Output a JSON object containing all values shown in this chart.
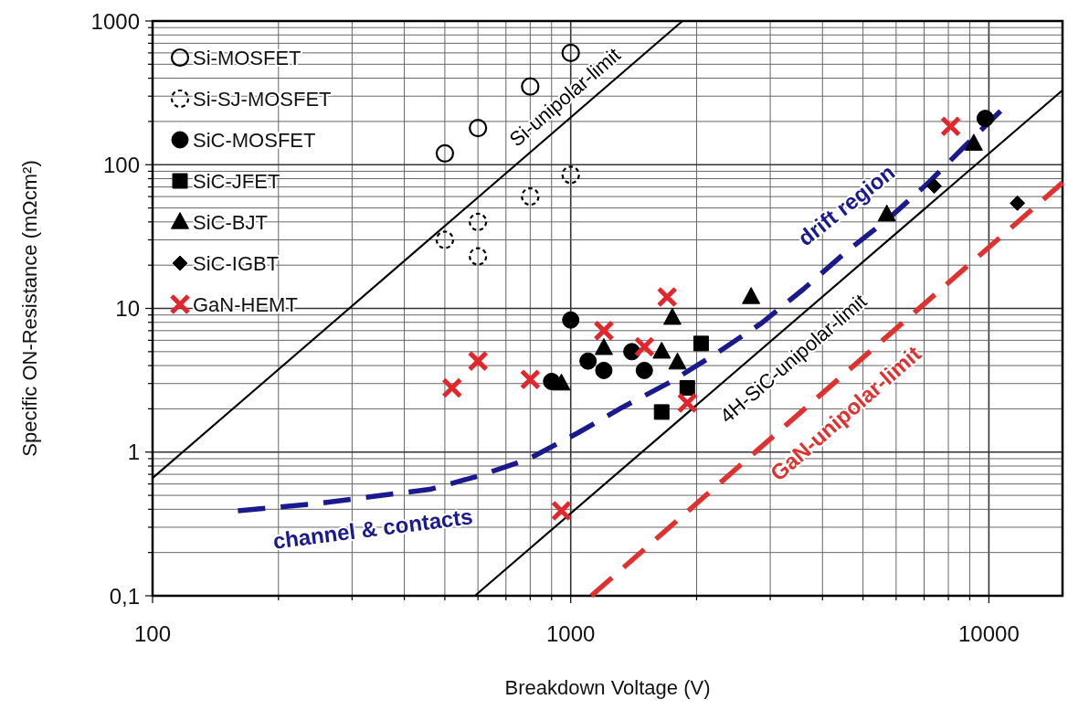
{
  "chart_data": {
    "type": "scatter",
    "xlabel": "Breakdown Voltage (V)",
    "ylabel": "Specific ON-Resistance (mΩcm²)",
    "log": "xy",
    "xlim": [
      100,
      15000
    ],
    "ylim": [
      0.1,
      1000
    ],
    "xticks": [
      100,
      {
        "value": 200,
        "label": null
      },
      {
        "value": 300,
        "label": null
      },
      {
        "value": 400,
        "label": null
      },
      {
        "value": 500,
        "label": null
      },
      {
        "value": 600,
        "label": null
      },
      {
        "value": 700,
        "label": null
      },
      {
        "value": 800,
        "label": null
      },
      {
        "value": 900,
        "label": null
      },
      1000,
      {
        "value": 2000,
        "label": null
      },
      {
        "value": 3000,
        "label": null
      },
      {
        "value": 4000,
        "label": null
      },
      {
        "value": 5000,
        "label": null
      },
      {
        "value": 6000,
        "label": null
      },
      {
        "value": 7000,
        "label": null
      },
      {
        "value": 8000,
        "label": null
      },
      {
        "value": 9000,
        "label": null
      },
      10000
    ],
    "yticks": [
      {
        "value": 0.1,
        "label": "0,1"
      },
      {
        "value": 0.2,
        "label": null
      },
      {
        "value": 0.3,
        "label": null
      },
      {
        "value": 0.4,
        "label": null
      },
      {
        "value": 0.5,
        "label": null
      },
      {
        "value": 0.6,
        "label": null
      },
      {
        "value": 0.7,
        "label": null
      },
      {
        "value": 0.8,
        "label": null
      },
      {
        "value": 0.9,
        "label": null
      },
      1,
      {
        "value": 2,
        "label": null
      },
      {
        "value": 3,
        "label": null
      },
      {
        "value": 4,
        "label": null
      },
      {
        "value": 5,
        "label": null
      },
      {
        "value": 6,
        "label": null
      },
      {
        "value": 7,
        "label": null
      },
      {
        "value": 8,
        "label": null
      },
      {
        "value": 9,
        "label": null
      },
      10,
      {
        "value": 20,
        "label": null
      },
      {
        "value": 30,
        "label": null
      },
      {
        "value": 40,
        "label": null
      },
      {
        "value": 50,
        "label": null
      },
      {
        "value": 60,
        "label": null
      },
      {
        "value": 70,
        "label": null
      },
      {
        "value": 80,
        "label": null
      },
      {
        "value": 90,
        "label": null
      },
      100,
      {
        "value": 200,
        "label": null
      },
      {
        "value": 300,
        "label": null
      },
      {
        "value": 400,
        "label": null
      },
      {
        "value": 500,
        "label": null
      },
      {
        "value": 600,
        "label": null
      },
      {
        "value": 700,
        "label": null
      },
      {
        "value": 800,
        "label": null
      },
      {
        "value": 900,
        "label": null
      },
      1000
    ],
    "grid": true,
    "legend": "top left",
    "series": [
      {
        "name": "Si-MOSFET",
        "marker": "circle",
        "line_style": "solid",
        "color": "#000000",
        "x": [
          500,
          600,
          800,
          1000
        ],
        "values": [
          120,
          180,
          350,
          600
        ]
      },
      {
        "name": "Si-SJ-MOSFET",
        "marker": "circle",
        "line_style": "dashed",
        "color": "#000000",
        "x": [
          500,
          600,
          600,
          800,
          1000
        ],
        "values": [
          30,
          40,
          23,
          60,
          85
        ]
      },
      {
        "name": "SiC-MOSFET",
        "marker": "circle",
        "color": "#000000",
        "x": [
          900,
          1000,
          1100,
          1200,
          1400,
          1500,
          9800
        ],
        "values": [
          3.1,
          8.3,
          4.3,
          3.7,
          5.0,
          3.7,
          210
        ]
      },
      {
        "name": "SiC-JFET",
        "marker": "square",
        "color": "#000000",
        "x": [
          1650,
          1900,
          2050
        ],
        "values": [
          1.9,
          2.8,
          5.7
        ]
      },
      {
        "name": "SiC-BJT",
        "marker": "triangle",
        "color": "#000000",
        "x": [
          950,
          1200,
          1650,
          1750,
          1800,
          2700,
          5700,
          9200
        ],
        "values": [
          3.0,
          5.3,
          5.0,
          8.6,
          4.2,
          12,
          45,
          140
        ]
      },
      {
        "name": "SiC-IGBT",
        "marker": "diamond",
        "color": "#000000",
        "x": [
          7400,
          11700
        ],
        "values": [
          71,
          54
        ]
      },
      {
        "name": "GaN-HEMT",
        "marker": "cross",
        "color": "#e3262b",
        "x": [
          520,
          600,
          800,
          950,
          1200,
          1500,
          1700,
          1900,
          8100
        ],
        "values": [
          2.8,
          4.3,
          3.2,
          0.39,
          7.0,
          5.4,
          12,
          2.2,
          185
        ]
      },
      {
        "type": "line",
        "color": "#000000",
        "line_style": "solid",
        "x": [
          100,
          1850
        ],
        "values": [
          0.66,
          1000
        ]
      },
      {
        "type": "line",
        "color": "#000000",
        "line_style": "solid",
        "x": [
          590,
          15000
        ],
        "values": [
          0.1,
          330
        ]
      },
      {
        "type": "line",
        "color": "#e0312f",
        "line_style": "dashed",
        "x": [
          1120,
          15000
        ],
        "values": [
          0.1,
          75
        ]
      },
      {
        "type": "line",
        "color": "#1a1a8e",
        "line_style": "dashed",
        "x": [
          160,
          250,
          460,
          600,
          790,
          1040,
          1330,
          1740,
          2240,
          2860,
          3600,
          4500,
          5800,
          7100,
          8700,
          10800
        ],
        "values": [
          0.39,
          0.44,
          0.55,
          0.68,
          0.89,
          1.36,
          2.05,
          3.1,
          4.9,
          7.9,
          13.6,
          24,
          43,
          73,
          132,
          245
        ]
      }
    ],
    "annotations": [
      "Si-unipolar-limit",
      "4H-SiC-unipolar-limit",
      "GaN-unipolar-limit",
      "drift region",
      "channel & contacts"
    ]
  }
}
